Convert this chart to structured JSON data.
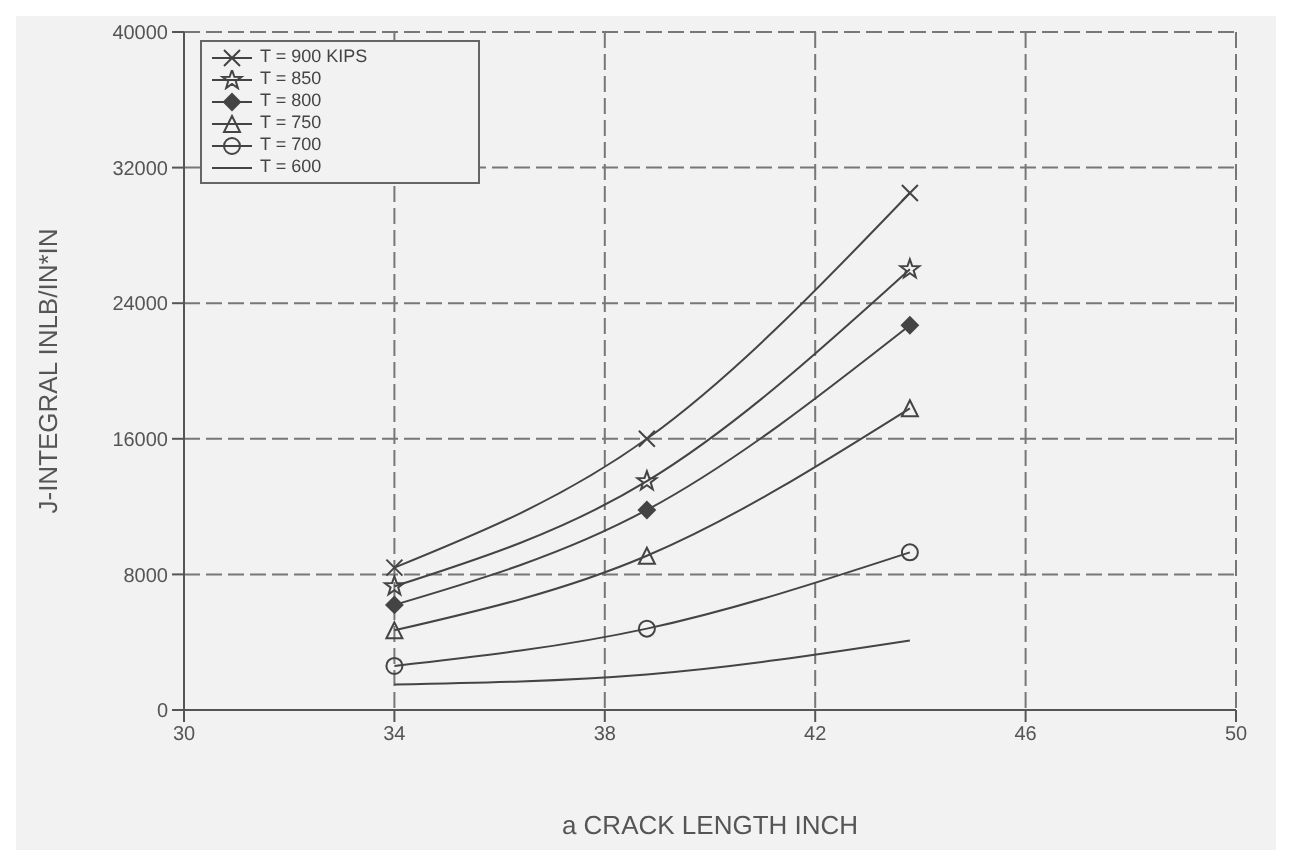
{
  "chart_data": {
    "type": "line",
    "xlabel": "a   CRACK LENGTH     INCH",
    "ylabel": "J-INTEGRAL    INLB/IN*IN",
    "x": [
      34,
      38.8,
      43.8
    ],
    "xlim": [
      30,
      50
    ],
    "xticks": [
      30,
      34,
      38,
      42,
      46,
      50
    ],
    "ylim": [
      0,
      40000
    ],
    "yticks": [
      0,
      8000,
      16000,
      24000,
      32000,
      40000
    ],
    "grid": true,
    "legend": "top left",
    "line_style": "solid",
    "series": [
      {
        "name": "T = 900 KIPS",
        "color": "#444444",
        "marker": "cross",
        "values": [
          8400,
          16000,
          30500
        ]
      },
      {
        "name": "T = 850",
        "color": "#444444",
        "marker": "star",
        "values": [
          7300,
          13500,
          26000
        ]
      },
      {
        "name": "T = 800",
        "color": "#444444",
        "marker": "diamond",
        "values": [
          6200,
          11800,
          22700
        ]
      },
      {
        "name": "T = 750",
        "color": "#444444",
        "marker": "triangle",
        "values": [
          4700,
          9100,
          17800
        ]
      },
      {
        "name": "T = 700",
        "color": "#444444",
        "marker": "circle",
        "values": [
          2600,
          4800,
          9300
        ]
      },
      {
        "name": "T = 600",
        "color": "#444444",
        "marker": "none",
        "values": [
          1500,
          2100,
          4100
        ]
      }
    ]
  }
}
